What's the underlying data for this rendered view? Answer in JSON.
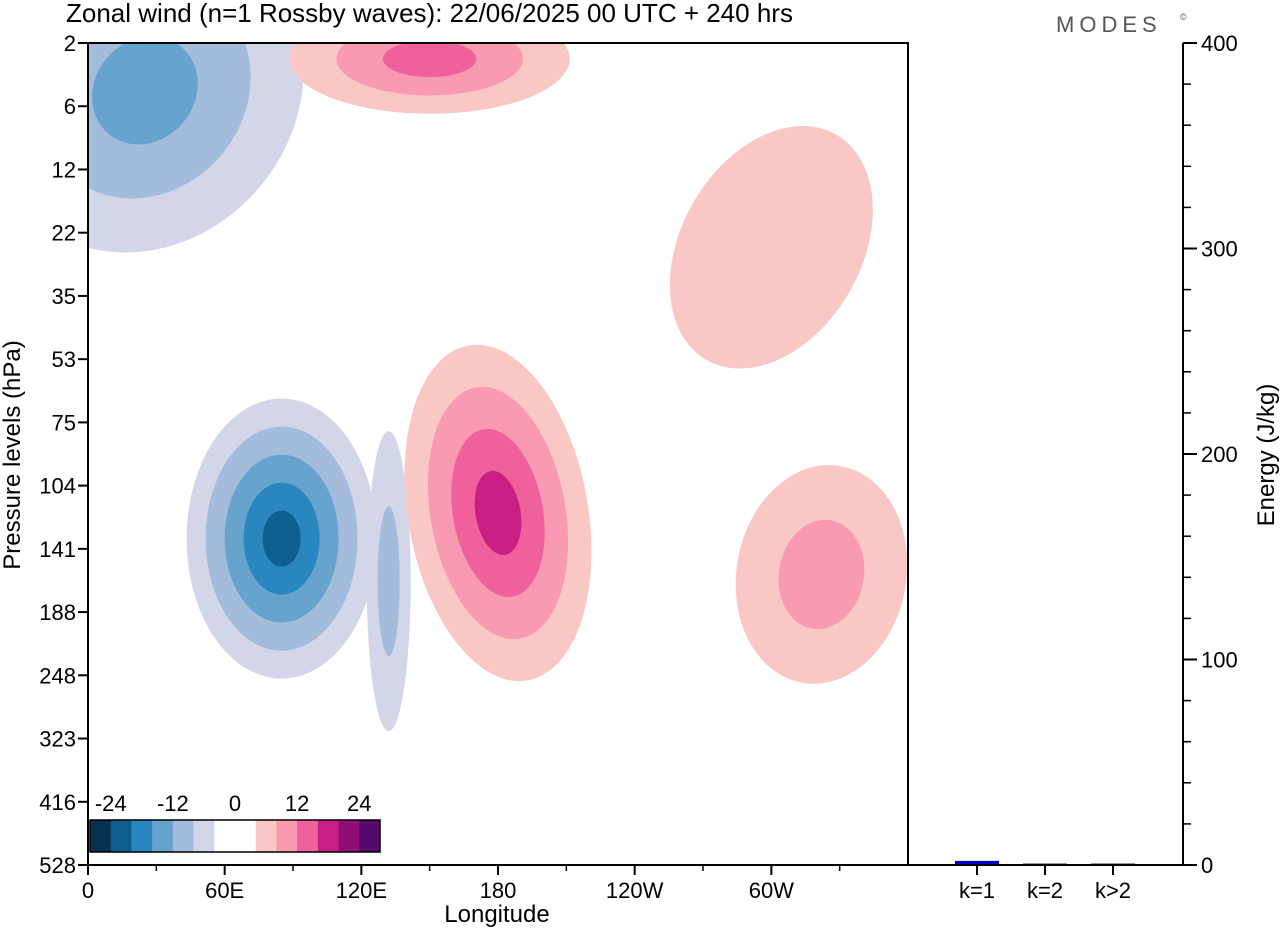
{
  "title": "Zonal wind (n=1 Rossby waves):  22/06/2025  00 UTC  + 240 hrs",
  "logo": "MODES",
  "logo_mark": "©",
  "chart_data": [
    {
      "type": "heatmap",
      "title": "Zonal wind (n=1 Rossby waves):  22/06/2025  00 UTC  + 240 hrs",
      "xlabel": "Longitude",
      "ylabel": "Pressure levels (hPa)",
      "x_ticks": [
        "0",
        "60E",
        "120E",
        "180",
        "120W",
        "60W"
      ],
      "x_tick_values": [
        0,
        60,
        120,
        180,
        240,
        300
      ],
      "xlim": [
        0,
        360
      ],
      "y_ticks": [
        "2",
        "6",
        "12",
        "22",
        "35",
        "53",
        "75",
        "104",
        "141",
        "188",
        "248",
        "323",
        "416",
        "528"
      ],
      "ylim": [
        528,
        2
      ],
      "colorbar": {
        "tick_labels": [
          "-24",
          "-12",
          "0",
          "12",
          "24"
        ],
        "colors": [
          "#08304f",
          "#0e5e90",
          "#2a86bf",
          "#66a3cd",
          "#a4bcdb",
          "#d2d6e8",
          "#ffffff",
          "#ffffff",
          "#f9c8c4",
          "#f99ab2",
          "#f0609a",
          "#c81f85",
          "#920c7a",
          "#560a6a"
        ]
      },
      "anomalies": [
        {
          "name": "neg-upper-west",
          "lon": 25,
          "level": 5,
          "value": -14
        },
        {
          "name": "neg-lower-west",
          "lon": 85,
          "level": 135,
          "value": -22
        },
        {
          "name": "neg-narrow",
          "lon": 132,
          "level": 165,
          "value": -10
        },
        {
          "name": "pos-lower-center",
          "lon": 180,
          "level": 120,
          "value": 18
        },
        {
          "name": "pos-upper-center",
          "lon": 150,
          "level": 3,
          "value": 14
        },
        {
          "name": "pos-lower-east",
          "lon": 322,
          "level": 160,
          "value": 10
        },
        {
          "name": "pos-upper-east",
          "lon": 300,
          "level": 25,
          "value": 5
        }
      ]
    },
    {
      "type": "bar",
      "ylabel": "Energy (J/kg)",
      "categories": [
        "k=1",
        "k=2",
        "k>2"
      ],
      "values": [
        2,
        0.4,
        0.3
      ],
      "ylim": [
        0,
        400
      ],
      "y_ticks": [
        "0",
        "100",
        "200",
        "300",
        "400"
      ],
      "bar_colors": [
        "#0000c8",
        "#333333",
        "#333333"
      ]
    }
  ]
}
